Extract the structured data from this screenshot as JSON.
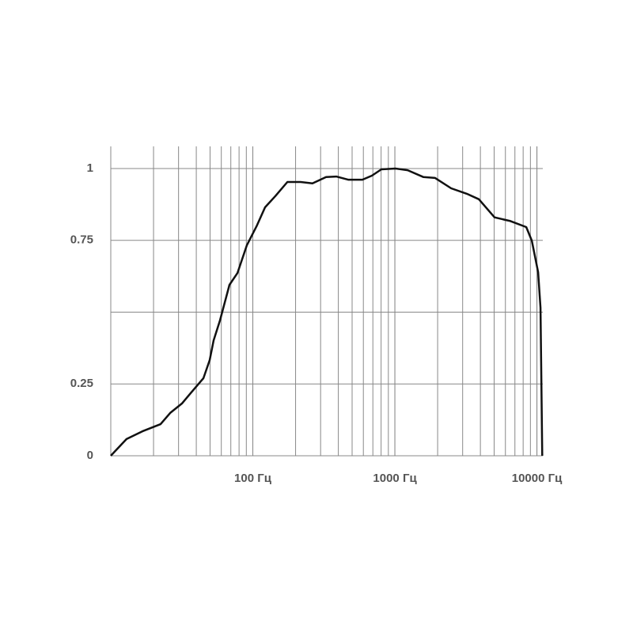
{
  "chart_data": {
    "type": "line",
    "x": [
      10,
      12.9,
      16.7,
      22.4,
      26.2,
      31.7,
      36.5,
      44.9,
      49.7,
      53.0,
      58.7,
      68.5,
      77.9,
      90.8,
      107,
      122,
      144,
      175,
      217,
      263,
      328,
      387,
      469,
      591,
      689,
      804,
      1010,
      1230,
      1590,
      1920,
      2490,
      3210,
      3900,
      5030,
      6510,
      8410,
      9200,
      10200,
      10600,
      10900
    ],
    "series": [
      {
        "color": "#111111",
        "values": [
          0,
          0.058,
          0.085,
          0.11,
          0.149,
          0.182,
          0.218,
          0.27,
          0.333,
          0.402,
          0.471,
          0.595,
          0.636,
          0.733,
          0.802,
          0.865,
          0.904,
          0.953,
          0.953,
          0.948,
          0.97,
          0.972,
          0.961,
          0.961,
          0.975,
          0.997,
          1.0,
          0.994,
          0.97,
          0.967,
          0.931,
          0.912,
          0.893,
          0.83,
          0.817,
          0.796,
          0.749,
          0.639,
          0.515,
          0
        ]
      }
    ],
    "xlim": [
      10,
      11000
    ],
    "log_x": true,
    "xticks": [
      {
        "value": 100,
        "label": "100 Гц"
      },
      {
        "value": 1000,
        "label": "1000 Гц"
      },
      {
        "value": 10000,
        "label": "10000 Гц"
      }
    ],
    "ylim": [
      0,
      1.077
    ],
    "yticks": [
      0,
      0.25,
      {
        "value": 0.5,
        "label": null
      },
      0.75,
      1
    ],
    "grid": true
  }
}
